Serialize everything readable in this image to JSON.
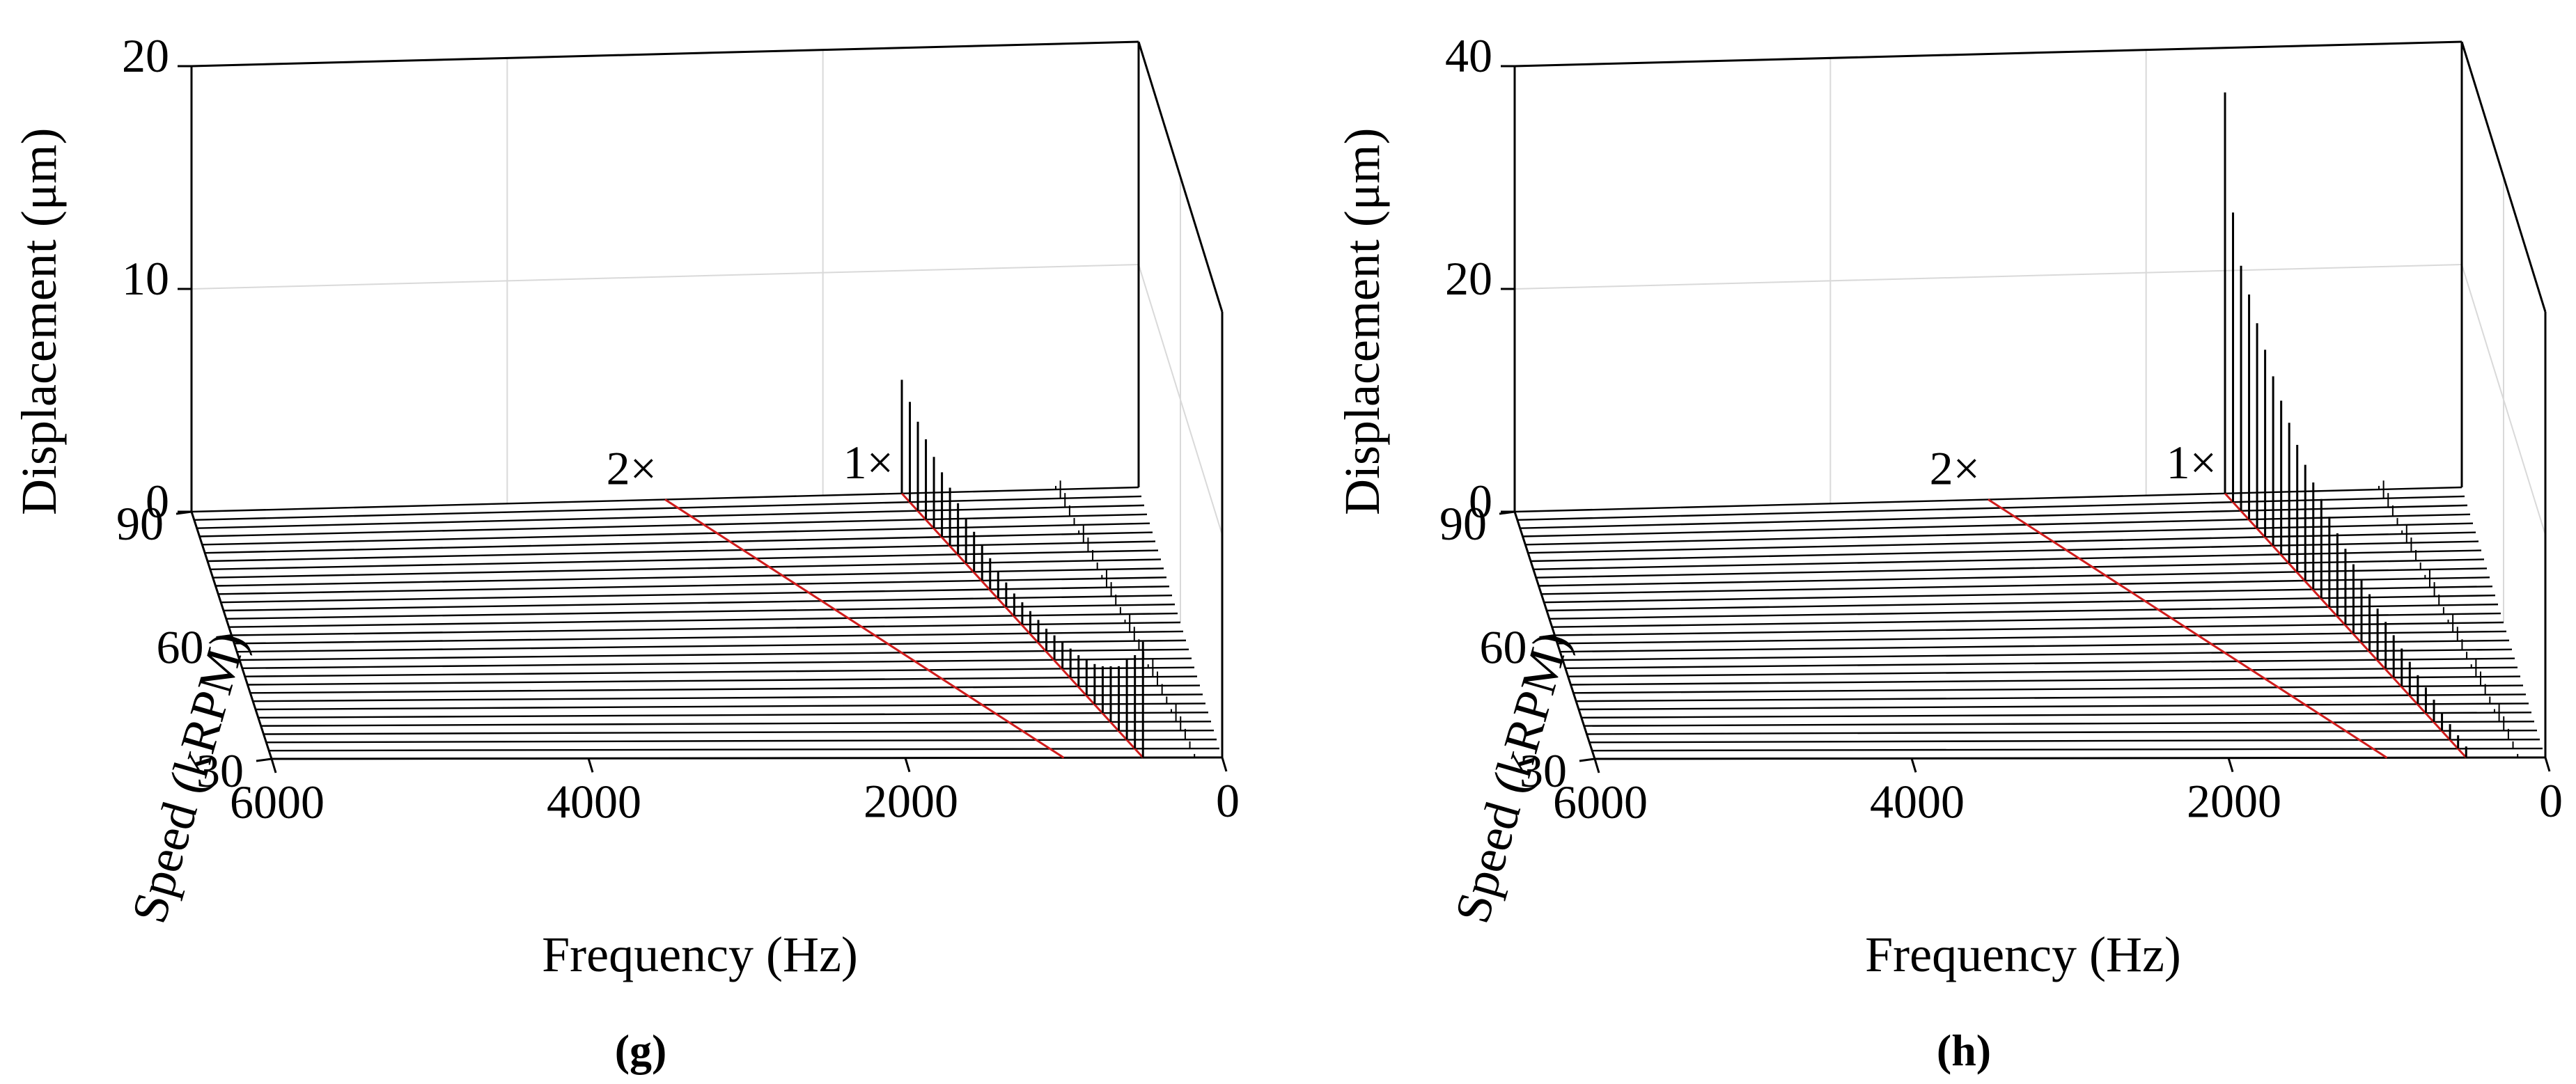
{
  "chart_data": [
    {
      "type": "waterfall3d",
      "caption": "(g)",
      "zlabel": "Displacement (μm)",
      "ylabel": "Speed (kRPM)",
      "xlabel": "Frequency (Hz)",
      "zlim": [
        0,
        20
      ],
      "xlim": [
        0,
        6000
      ],
      "ylim": [
        30,
        90
      ],
      "x_ticks": [
        "6000",
        "4000",
        "2000",
        "0"
      ],
      "y_ticks": [
        "30",
        "60",
        "90"
      ],
      "z_ticks": [
        "0",
        "10",
        "20"
      ],
      "annotations": [
        "2×",
        "1×"
      ],
      "grid": true,
      "slices": 31,
      "series": [
        {
          "harmonic": 1,
          "speed_krpm": [
            30,
            32,
            34,
            36,
            38,
            40,
            42,
            44,
            46,
            48,
            50,
            52,
            54,
            56,
            58,
            60,
            62,
            64,
            66,
            68,
            70,
            72,
            74,
            76,
            78,
            80,
            82,
            84,
            86,
            88,
            90
          ],
          "amplitude_um": [
            5.2,
            4.2,
            3.6,
            2.9,
            2.5,
            2.1,
            1.8,
            1.6,
            1.4,
            1.3,
            1.2,
            1.1,
            1.0,
            1.0,
            1.0,
            1.0,
            1.0,
            1.1,
            1.2,
            1.4,
            1.6,
            1.8,
            2.0,
            2.3,
            2.6,
            2.9,
            3.2,
            3.6,
            4.0,
            4.5,
            5.1
          ]
        },
        {
          "harmonic": 2,
          "speed_krpm": [
            30,
            90
          ],
          "amplitude_um": [
            0.05,
            0.05
          ]
        }
      ]
    },
    {
      "type": "waterfall3d",
      "caption": "(h)",
      "zlabel": "Displacement (μm)",
      "ylabel": "Speed (kRPM)",
      "xlabel": "Frequency (Hz)",
      "zlim": [
        0,
        40
      ],
      "xlim": [
        0,
        6000
      ],
      "ylim": [
        30,
        90
      ],
      "x_ticks": [
        "6000",
        "4000",
        "2000",
        "0"
      ],
      "y_ticks": [
        "30",
        "60",
        "90"
      ],
      "z_ticks": [
        "0",
        "20",
        "40"
      ],
      "annotations": [
        "2×",
        "1×"
      ],
      "grid": true,
      "slices": 31,
      "series": [
        {
          "harmonic": 1,
          "speed_krpm": [
            30,
            32,
            34,
            36,
            38,
            40,
            42,
            44,
            46,
            48,
            50,
            52,
            54,
            56,
            58,
            60,
            62,
            64,
            66,
            68,
            70,
            72,
            74,
            76,
            78,
            80,
            82,
            84,
            86,
            88,
            90
          ],
          "amplitude_um": [
            1.0,
            1.2,
            1.4,
            1.6,
            2.0,
            2.3,
            2.6,
            3.0,
            3.4,
            3.8,
            4.2,
            4.6,
            5.1,
            5.6,
            6.2,
            6.8,
            7.4,
            8.1,
            8.9,
            9.6,
            10.4,
            11.4,
            12.6,
            13.8,
            15.2,
            16.8,
            18.4,
            20.2,
            22.0,
            26.0,
            36.0
          ]
        },
        {
          "harmonic": 2,
          "speed_krpm": [
            30,
            90
          ],
          "amplitude_um": [
            0.03,
            0.03
          ]
        }
      ]
    }
  ]
}
